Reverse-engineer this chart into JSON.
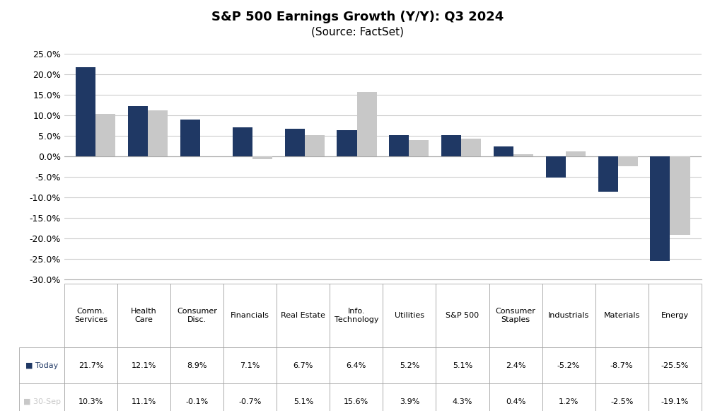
{
  "title_line1": "S&P 500 Earnings Growth (Y/Y): Q3 2024",
  "title_line2": "(Source: FactSet)",
  "categories": [
    "Comm.\nServices",
    "Health\nCare",
    "Consumer\nDisc.",
    "Financials",
    "Real Estate",
    "Info.\nTechnology",
    "Utilities",
    "S&P 500",
    "Consumer\nStaples",
    "Industrials",
    "Materials",
    "Energy"
  ],
  "today_values": [
    21.7,
    12.1,
    8.9,
    7.1,
    6.7,
    6.4,
    5.2,
    5.1,
    2.4,
    -5.2,
    -8.7,
    -25.5
  ],
  "sep_values": [
    10.3,
    11.1,
    -0.1,
    -0.7,
    5.1,
    15.6,
    3.9,
    4.3,
    0.4,
    1.2,
    -2.5,
    -19.1
  ],
  "today_color": "#1F3864",
  "sep_color": "#C8C8C8",
  "background_color": "#FFFFFF",
  "ylim_min": -30.0,
  "ylim_max": 25.0,
  "yticks": [
    -30.0,
    -25.0,
    -20.0,
    -15.0,
    -10.0,
    -5.0,
    0.0,
    5.0,
    10.0,
    15.0,
    20.0,
    25.0
  ],
  "legend_today_label": "■Today",
  "legend_sep_label": "■ 30-Sep",
  "today_display": [
    "21.7%",
    "12.1%",
    "8.9%",
    "7.1%",
    "6.7%",
    "6.4%",
    "5.2%",
    "5.1%",
    "2.4%",
    "-5.2%",
    "-8.7%",
    "-25.5%"
  ],
  "sep_display": [
    "10.3%",
    "11.1%",
    "-0.1%",
    "-0.7%",
    "5.1%",
    "15.6%",
    "3.9%",
    "4.3%",
    "0.4%",
    "1.2%",
    "-2.5%",
    "-19.1%"
  ]
}
